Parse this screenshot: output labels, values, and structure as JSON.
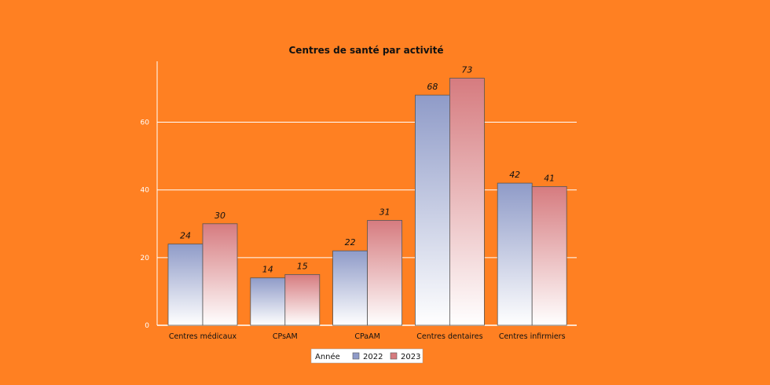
{
  "chart_data": {
    "type": "bar",
    "title": "Centres de santé par activité",
    "categories": [
      "Centres médicaux",
      "CPsAM",
      "CPaAM",
      "Centres dentaires",
      "Centres infirmiers"
    ],
    "series": [
      {
        "name": "2022",
        "values": [
          24,
          14,
          22,
          68,
          42
        ],
        "color": "#8F9BC8",
        "color_light": "#FFFFFF"
      },
      {
        "name": "2023",
        "values": [
          30,
          15,
          31,
          73,
          41
        ],
        "color": "#D67B7F",
        "color_light": "#FFFFFF"
      }
    ],
    "legend_title": "Année",
    "yticks": [
      0,
      20,
      40,
      60
    ],
    "ylim": [
      0,
      78
    ],
    "grid": true,
    "legend_position": "bottom-center",
    "background": "#FF8022",
    "grid_color": "#FFFFFF"
  }
}
